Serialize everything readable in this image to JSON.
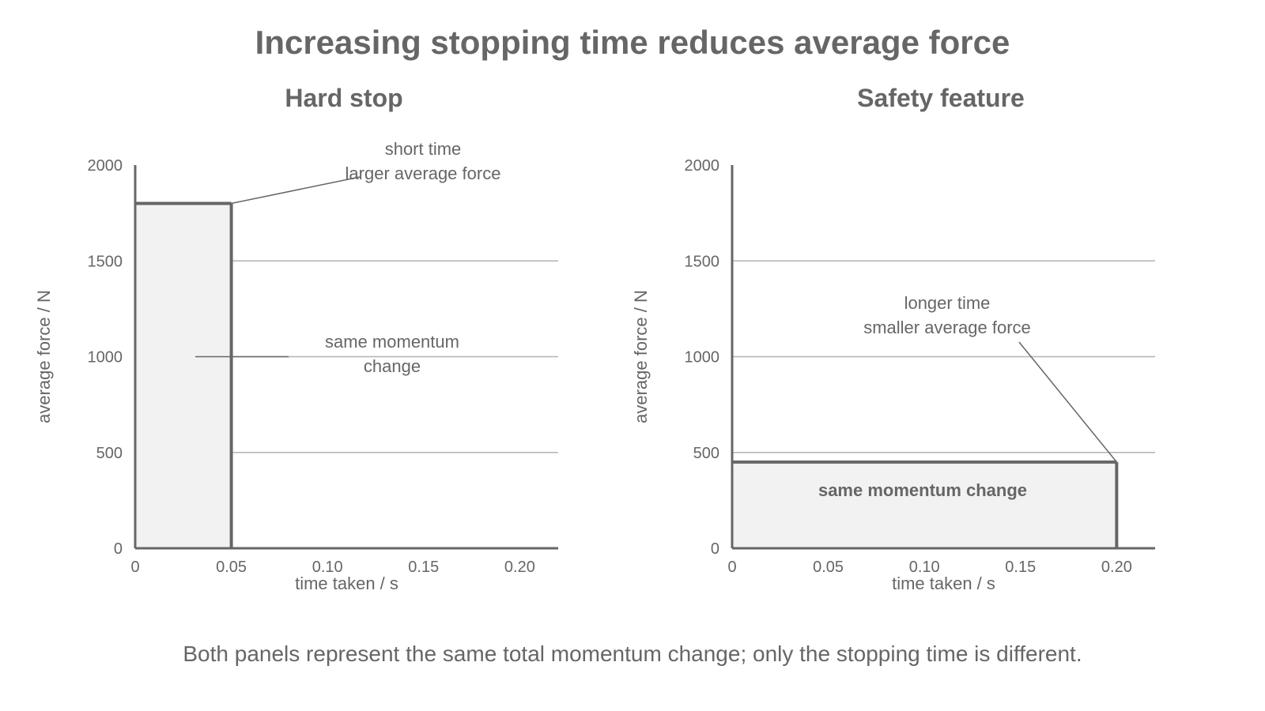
{
  "title": "Increasing stopping time reduces average force",
  "footnote": "Both panels represent the same total momentum change; only the stopping time is different.",
  "colors": {
    "text": "#666666",
    "axis": "#666666",
    "grid": "#b3b3b3",
    "fill": "#f2f2f2",
    "bar_edge": "#666666"
  },
  "chart_data": [
    {
      "type": "area",
      "title": "Hard stop",
      "xlabel": "time taken / s",
      "ylabel": "average force / N",
      "xlim": [
        0,
        0.22
      ],
      "ylim": [
        0,
        2000
      ],
      "xticks": [
        0,
        0.05,
        0.1,
        0.15,
        0.2
      ],
      "xtick_labels": [
        "0",
        "0.05",
        "0.10",
        "0.15",
        "0.20"
      ],
      "yticks": [
        0,
        500,
        1000,
        1500,
        2000
      ],
      "ytick_labels": [
        "0",
        "500",
        "1000",
        "1500",
        "2000"
      ],
      "grid": true,
      "bar": {
        "duration": 0.05,
        "force": 1800
      },
      "annotations": [
        {
          "lines": [
            "short time",
            "larger average force"
          ]
        },
        {
          "lines": [
            "same momentum",
            "change"
          ]
        }
      ]
    },
    {
      "type": "area",
      "title": "Safety feature",
      "xlabel": "time taken / s",
      "ylabel": "average force / N",
      "xlim": [
        0,
        0.22
      ],
      "ylim": [
        0,
        2000
      ],
      "xticks": [
        0,
        0.05,
        0.1,
        0.15,
        0.2
      ],
      "xtick_labels": [
        "0",
        "0.05",
        "0.10",
        "0.15",
        "0.20"
      ],
      "yticks": [
        0,
        500,
        1000,
        1500,
        2000
      ],
      "ytick_labels": [
        "0",
        "500",
        "1000",
        "1500",
        "2000"
      ],
      "grid": true,
      "bar": {
        "duration": 0.2,
        "force": 450
      },
      "annotations": [
        {
          "lines": [
            "longer time",
            "smaller average force"
          ]
        },
        {
          "lines": [
            "same momentum change"
          ]
        }
      ]
    }
  ]
}
